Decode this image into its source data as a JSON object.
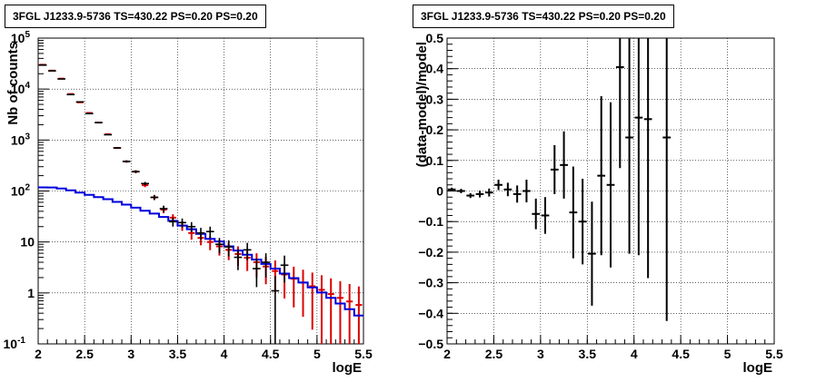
{
  "chart_data": [
    {
      "type": "line",
      "title": "3FGL J1233.9-5736 TS=430.22 PS=0.20 PS=0.20",
      "xlabel": "logE",
      "ylabel": "Nb of counts",
      "xlim": [
        2,
        5.5
      ],
      "ylim": [
        0.1,
        100000
      ],
      "yscale": "log",
      "grid": true,
      "x_ticks": [
        "2",
        "2.5",
        "3",
        "3.5",
        "4",
        "4.5",
        "5",
        "5.5"
      ],
      "y_ticks": [
        "10^-1",
        "1",
        "10",
        "10^2",
        "10^3",
        "10^4",
        "10^5"
      ],
      "bin_width": 0.1,
      "series": [
        {
          "color": "#dd0000",
          "style": "model-total-with-errors",
          "x": [
            2.05,
            2.15,
            2.25,
            2.35,
            2.45,
            2.55,
            2.65,
            2.75,
            2.85,
            2.95,
            3.05,
            3.15,
            3.25,
            3.35,
            3.45,
            3.55,
            3.65,
            3.75,
            3.85,
            3.95,
            4.05,
            4.15,
            4.25,
            4.35,
            4.45,
            4.55,
            4.65,
            4.75,
            4.85,
            4.95,
            5.05,
            5.15,
            5.25,
            5.35,
            5.45
          ],
          "values": [
            30000,
            23000,
            16000,
            8000,
            5500,
            3400,
            2200,
            1300,
            700,
            380,
            240,
            130,
            75,
            43,
            30,
            21,
            15,
            12,
            10,
            8.2,
            7,
            5.8,
            4.9,
            4.0,
            3.3,
            2.7,
            2.3,
            1.9,
            1.6,
            1.35,
            1.15,
            0.95,
            0.8,
            0.68,
            0.58
          ],
          "err_low": [
            0,
            0,
            0,
            0,
            0,
            0,
            0,
            0,
            26,
            19,
            15,
            11,
            8.5,
            6.5,
            5,
            4.5,
            3.9,
            3.4,
            3.1,
            2.8,
            2.6,
            2.4,
            2.2,
            2.0,
            1.82,
            1.64,
            1.52,
            1.38,
            1.26,
            1.16,
            1.07,
            0.95,
            0.8,
            0.68,
            0.58
          ],
          "err_high": [
            0,
            0,
            0,
            0,
            0,
            0,
            0,
            0,
            26,
            19,
            15,
            11,
            8.5,
            6.5,
            5,
            4.5,
            3.9,
            3.4,
            3.1,
            2.8,
            2.6,
            2.4,
            2.2,
            2.0,
            1.82,
            1.64,
            1.52,
            1.38,
            1.26,
            1.16,
            1.07,
            0.98,
            0.9,
            0.82,
            0.76
          ]
        },
        {
          "color": "#0000dd",
          "style": "source-model-histogram",
          "x": [
            2.0,
            2.1,
            2.2,
            2.3,
            2.4,
            2.5,
            2.6,
            2.7,
            2.8,
            2.9,
            3.0,
            3.1,
            3.2,
            3.3,
            3.4,
            3.5,
            3.6,
            3.7,
            3.8,
            3.9,
            4.0,
            4.1,
            4.2,
            4.3,
            4.4,
            4.5,
            4.6,
            4.7,
            4.8,
            4.9,
            5.0,
            5.1,
            5.2,
            5.3,
            5.4
          ],
          "values": [
            118,
            117,
            112,
            103,
            93,
            84,
            76,
            69,
            61,
            54,
            47,
            41,
            36,
            31,
            26,
            21,
            17.8,
            14.4,
            11.5,
            10.2,
            8.2,
            6.8,
            5.6,
            4.5,
            3.7,
            3.0,
            2.4,
            1.95,
            1.6,
            1.28,
            1.02,
            0.8,
            0.62,
            0.48,
            0.36
          ]
        },
        {
          "color": "#000000",
          "style": "data-points",
          "x": [
            2.05,
            2.15,
            2.25,
            2.35,
            2.45,
            2.55,
            2.65,
            2.75,
            2.85,
            2.95,
            3.05,
            3.15,
            3.25,
            3.35,
            3.45,
            3.55,
            3.65,
            3.75,
            3.85,
            3.95,
            4.05,
            4.15,
            4.25,
            4.35,
            4.45,
            4.55,
            4.65
          ],
          "values": [
            29500,
            22800,
            15800,
            7800,
            5600,
            3300,
            2200,
            1270,
            700,
            380,
            240,
            140,
            75,
            45,
            25,
            24,
            20,
            15,
            16,
            9,
            8,
            5,
            7,
            3,
            4,
            1.1,
            3.5
          ],
          "err_low": [
            0,
            0,
            0,
            0,
            0,
            0,
            0,
            0,
            26,
            19,
            15,
            11,
            8.6,
            6.7,
            5,
            4.9,
            4.5,
            3.9,
            4,
            3,
            2.8,
            2.2,
            2.6,
            1.7,
            2,
            1.1,
            1.9
          ],
          "err_high": [
            0,
            0,
            0,
            0,
            0,
            0,
            0,
            0,
            26,
            19,
            15,
            11,
            8.6,
            6.7,
            5,
            4.9,
            4.5,
            3.9,
            4,
            3,
            2.8,
            2.2,
            2.6,
            1.7,
            2,
            1.05,
            1.9
          ]
        }
      ]
    },
    {
      "type": "scatter",
      "title": "3FGL J1233.9-5736 TS=430.22 PS=0.20 PS=0.20",
      "xlabel": "logE",
      "ylabel": "(data-model)/model",
      "xlim": [
        2,
        5.5
      ],
      "ylim": [
        -0.5,
        0.5
      ],
      "grid": true,
      "x_ticks": [
        "2",
        "2.5",
        "3",
        "3.5",
        "4",
        "4.5",
        "5",
        "5.5"
      ],
      "y_ticks": [
        "−0.5",
        "−0.4",
        "−0.3",
        "−0.2",
        "−0.1",
        "0",
        "0.1",
        "0.2",
        "0.3",
        "0.4",
        "0.5"
      ],
      "bin_width": 0.1,
      "series": [
        {
          "color": "#000000",
          "style": "residual-points",
          "x": [
            2.05,
            2.15,
            2.25,
            2.35,
            2.45,
            2.55,
            2.65,
            2.75,
            2.85,
            2.95,
            3.05,
            3.15,
            3.25,
            3.35,
            3.45,
            3.55,
            3.65,
            3.75,
            3.85,
            3.95,
            4.05,
            4.15,
            4.35
          ],
          "values": [
            0.005,
            0.0,
            -0.015,
            -0.01,
            -0.005,
            0.02,
            0.005,
            -0.01,
            0.0,
            -0.075,
            -0.08,
            0.07,
            0.085,
            -0.07,
            -0.1,
            -0.205,
            0.05,
            0.02,
            0.405,
            0.175,
            0.24,
            0.235,
            0.175
          ],
          "err": [
            0.006,
            0.007,
            0.008,
            0.011,
            0.013,
            0.017,
            0.022,
            0.028,
            0.037,
            0.05,
            0.06,
            0.08,
            0.11,
            0.15,
            0.14,
            0.17,
            0.26,
            0.27,
            0.33,
            0.38,
            0.45,
            0.52,
            0.6
          ]
        }
      ]
    }
  ]
}
